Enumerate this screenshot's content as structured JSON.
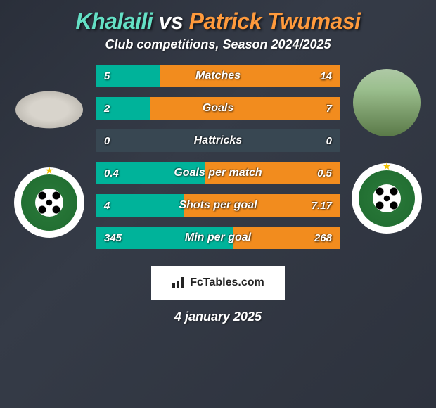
{
  "title_player_a": "Khalaili",
  "title_vs": "vs",
  "title_player_b": "Patrick Twumasi",
  "title_color_a": "#64e0c5",
  "title_color_vs": "#ffffff",
  "title_color_b": "#ff9a3c",
  "subtitle": "Club competitions, Season 2024/2025",
  "colors": {
    "bar_a": "#00b39a",
    "bar_b": "#f28c1e",
    "bar_bg": "#2b3841",
    "stat_row_bg": "#384752",
    "badge_bg": "#ffffff",
    "badge_text": "#222222"
  },
  "stats": [
    {
      "label": "Matches",
      "a": "5",
      "b": "14",
      "a_num": 5,
      "b_num": 14
    },
    {
      "label": "Goals",
      "a": "2",
      "b": "7",
      "a_num": 2,
      "b_num": 7
    },
    {
      "label": "Hattricks",
      "a": "0",
      "b": "0",
      "a_num": 0,
      "b_num": 0
    },
    {
      "label": "Goals per match",
      "a": "0.4",
      "b": "0.5",
      "a_num": 0.4,
      "b_num": 0.5
    },
    {
      "label": "Shots per goal",
      "a": "4",
      "b": "7.17",
      "a_num": 4,
      "b_num": 7.17
    },
    {
      "label": "Min per goal",
      "a": "345",
      "b": "268",
      "a_num": 345,
      "b_num": 268
    }
  ],
  "footer_brand": "FcTables.com",
  "date": "4 january 2025"
}
